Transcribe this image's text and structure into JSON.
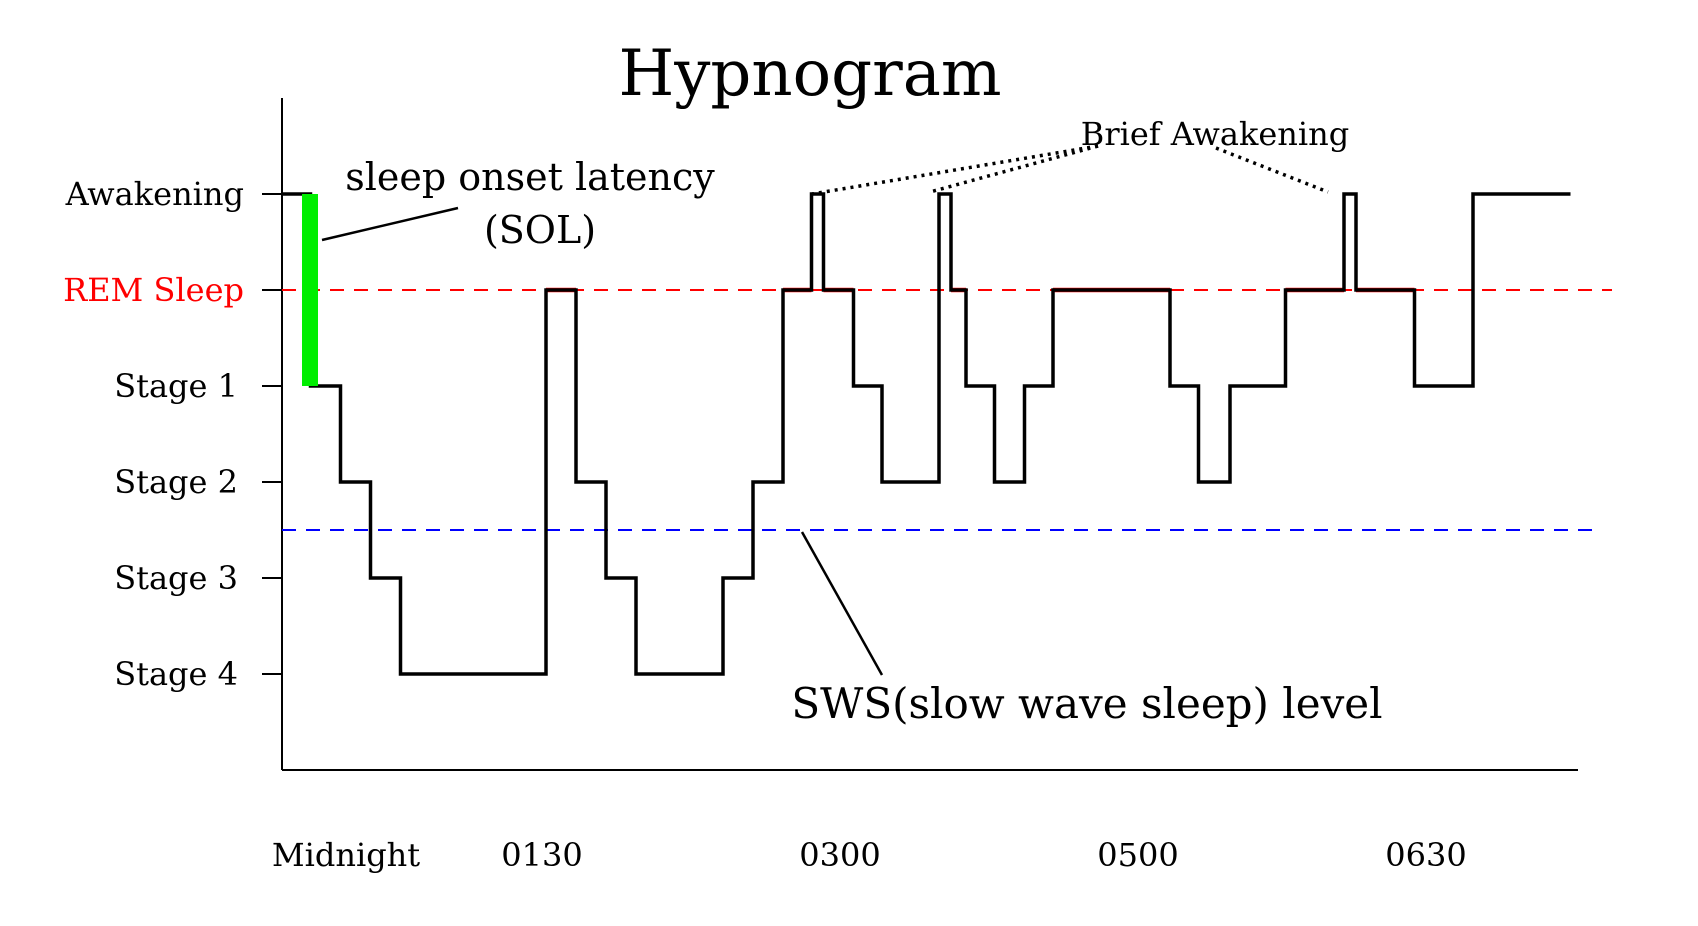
{
  "chart_data": {
    "type": "line",
    "title": "Hypnogram",
    "xlabel": "",
    "ylabel": "",
    "x_tick_labels": [
      "Midnight",
      "0130",
      "0300",
      "0500",
      "0630"
    ],
    "y_levels": [
      {
        "name": "Awakening",
        "color": "#000000"
      },
      {
        "name": "REM Sleep",
        "color": "#ff0000"
      },
      {
        "name": "Stage 1",
        "color": "#000000"
      },
      {
        "name": "Stage 2",
        "color": "#000000"
      },
      {
        "name": "Stage 3",
        "color": "#000000"
      },
      {
        "name": "Stage 4",
        "color": "#000000"
      }
    ],
    "rem_level": 1,
    "sws_level": 3.5,
    "steps": [
      [
        0.0,
        0
      ],
      [
        0.19,
        2
      ],
      [
        0.39,
        3
      ],
      [
        0.59,
        4
      ],
      [
        0.79,
        5
      ],
      [
        1.76,
        1
      ],
      [
        1.96,
        3
      ],
      [
        2.16,
        4
      ],
      [
        2.36,
        5
      ],
      [
        2.94,
        4
      ],
      [
        3.14,
        3
      ],
      [
        3.34,
        1
      ],
      [
        3.53,
        0
      ],
      [
        3.61,
        1
      ],
      [
        3.81,
        2
      ],
      [
        4.0,
        3
      ],
      [
        4.38,
        0
      ],
      [
        4.46,
        1
      ],
      [
        4.56,
        2
      ],
      [
        4.75,
        3
      ],
      [
        4.95,
        2
      ],
      [
        5.14,
        1
      ],
      [
        5.92,
        2
      ],
      [
        6.11,
        3
      ],
      [
        6.32,
        2
      ],
      [
        6.69,
        1
      ],
      [
        7.08,
        0
      ],
      [
        7.16,
        1
      ],
      [
        7.55,
        2
      ],
      [
        7.94,
        0
      ],
      [
        8.59,
        0
      ]
    ],
    "sol": {
      "from_level": 0,
      "to_level": 2,
      "color": "#00ee00"
    },
    "sws_line_color": "#0000ff",
    "rem_line_color": "#ff0000",
    "annotations": {
      "sol_label_line1": "sleep onset latency",
      "sol_label_line2": "(SOL)",
      "brief_awakening": "Brief Awakening",
      "sws_label": "SWS(slow wave sleep) level"
    }
  }
}
